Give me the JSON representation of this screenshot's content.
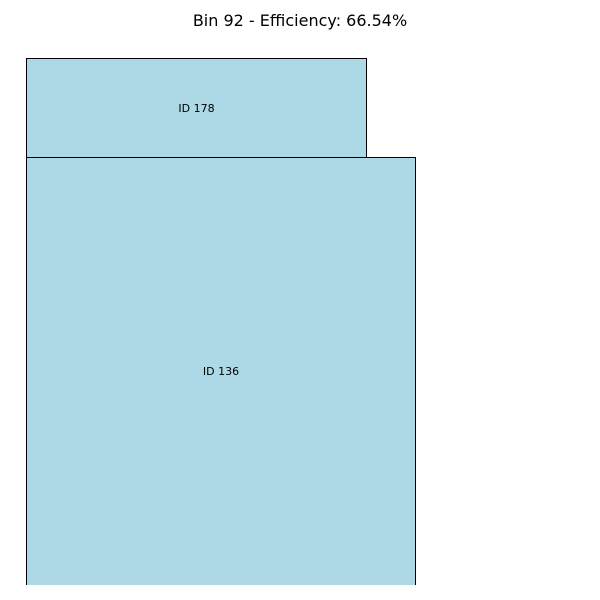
{
  "title": "Bin 92 - Efficiency: 66.54%",
  "items": [
    {
      "label": "ID 178",
      "fill": "#add8e6"
    },
    {
      "label": "ID 136",
      "fill": "#add8e6"
    }
  ],
  "colors": {
    "item_fill": "#add8e6",
    "border": "#000000",
    "background": "#ffffff"
  }
}
